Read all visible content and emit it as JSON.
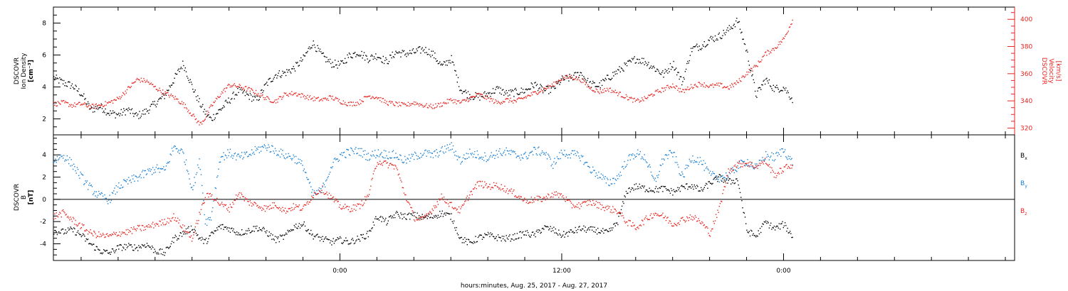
{
  "chart_data": {
    "type": "scatter",
    "x_axis": {
      "label": "hours:minutes, Aug. 25, 2017 - Aug. 27, 2017",
      "range_hours": [
        -15.5,
        36.5
      ],
      "ticks": [
        {
          "h": 0,
          "label": "0:00"
        },
        {
          "h": 12,
          "label": "12:00"
        },
        {
          "h": 24,
          "label": "0:00"
        }
      ],
      "minor_tick_step_hours": 2
    },
    "panels": [
      {
        "id": "density-velocity",
        "left_axis": {
          "label_lines": [
            "DSCOVR",
            "Ion Density",
            "[cm⁻³]"
          ],
          "range": [
            1,
            9
          ],
          "ticks": [
            2,
            4,
            6,
            8
          ],
          "color": "#000000"
        },
        "right_axis": {
          "label_lines": [
            "DSCOVR",
            "Velocity",
            "[km/s]"
          ],
          "range": [
            315,
            409
          ],
          "ticks": [
            320,
            340,
            360,
            380,
            400
          ],
          "color": "#e8231e"
        },
        "series": [
          {
            "name": "Ion Density",
            "axis": "left",
            "color": "#000000",
            "x": [
              -15.5,
              -15,
              -14.5,
              -14,
              -13.5,
              -13,
              -12.5,
              -12,
              -11.5,
              -11,
              -10.5,
              -10,
              -9.5,
              -9,
              -8.5,
              -8,
              -7.6,
              -7.3,
              -7,
              -6.5,
              -6,
              -5.5,
              -5,
              -4.5,
              -4,
              -3.5,
              -3,
              -2.5,
              -2,
              -1.5,
              -1,
              -0.5,
              0,
              0.5,
              1,
              1.5,
              2,
              2.5,
              3,
              3.5,
              4,
              4.5,
              5,
              5.5,
              6,
              6.5,
              7,
              7.5,
              8,
              8.5,
              9,
              9.5,
              10,
              10.5,
              11,
              11.5,
              12,
              12.5,
              13,
              13.5,
              14,
              14.5,
              15,
              15.5,
              16,
              16.5,
              17,
              17.5,
              18,
              18.5,
              19,
              19.5,
              20,
              20.5,
              21,
              21.5,
              22,
              22.5,
              23,
              23.5,
              24,
              24.5
            ],
            "y": [
              4.6,
              4.3,
              4.1,
              3.6,
              2.6,
              2.8,
              2.4,
              2.3,
              2.6,
              2.2,
              2.5,
              3.0,
              3.5,
              4.5,
              5.5,
              4.0,
              3.0,
              2.4,
              2.0,
              2.6,
              3.2,
              3.8,
              3.5,
              3.2,
              4.2,
              4.8,
              4.9,
              5.2,
              5.8,
              6.8,
              6.0,
              5.5,
              5.4,
              6.0,
              6.2,
              5.8,
              6.0,
              5.6,
              6.2,
              6.1,
              6.2,
              6.4,
              6.1,
              5.3,
              5.8,
              3.9,
              3.5,
              3.4,
              3.6,
              3.9,
              3.6,
              3.7,
              3.8,
              4.2,
              3.8,
              3.9,
              4.5,
              4.6,
              4.9,
              4.2,
              4.1,
              4.6,
              5.0,
              5.4,
              5.8,
              5.6,
              5.2,
              4.8,
              5.5,
              4.3,
              6.4,
              6.6,
              7.0,
              7.2,
              7.6,
              8.2,
              6.2,
              3.5,
              4.5,
              3.9,
              4.0,
              3.2
            ]
          },
          {
            "name": "Velocity",
            "axis": "right",
            "color": "#e8231e",
            "x": [
              -15.5,
              -15,
              -14.5,
              -14,
              -13.5,
              -13,
              -12.5,
              -12,
              -11.5,
              -11,
              -10.5,
              -10,
              -9.5,
              -9,
              -8.5,
              -8,
              -7.6,
              -7.3,
              -7,
              -6.5,
              -6,
              -5.5,
              -5,
              -4.5,
              -4,
              -3.5,
              -3,
              -2.5,
              -2,
              -1.5,
              -1,
              -0.5,
              0,
              0.5,
              1,
              1.5,
              2,
              2.5,
              3,
              3.5,
              4,
              4.5,
              5,
              5.5,
              6,
              6.5,
              7,
              7.5,
              8,
              8.5,
              9,
              9.5,
              10,
              10.5,
              11,
              11.5,
              12,
              12.5,
              13,
              13.5,
              14,
              14.5,
              15,
              15.5,
              16,
              16.5,
              17,
              17.5,
              18,
              18.5,
              19,
              19.5,
              20,
              20.5,
              21,
              21.5,
              22,
              22.5,
              23,
              23.5,
              24,
              24.5
            ],
            "y": [
              338,
              339,
              337,
              338,
              336,
              337,
              339,
              342,
              349,
              356,
              355,
              350,
              346,
              343,
              338,
              330,
              323,
              328,
              336,
              345,
              352,
              351,
              349,
              346,
              342,
              340,
              345,
              346,
              344,
              342,
              341,
              343,
              340,
              338,
              339,
              344,
              343,
              339,
              338,
              337,
              339,
              337,
              336,
              338,
              341,
              339,
              342,
              345,
              342,
              339,
              341,
              340,
              343,
              346,
              349,
              352,
              357,
              358,
              356,
              350,
              347,
              349,
              346,
              343,
              340,
              342,
              346,
              349,
              352,
              347,
              351,
              353,
              351,
              352,
              350,
              354,
              361,
              366,
              375,
              379,
              386,
              401
            ]
          }
        ]
      },
      {
        "id": "magnetic-field",
        "left_axis": {
          "label_lines": [
            "DSCOVR",
            "B",
            "[nT]"
          ],
          "range": [
            -5.5,
            5.8
          ],
          "ticks": [
            -4,
            -2,
            0,
            2,
            4
          ],
          "color": "#000000"
        },
        "zero_line": true,
        "series": [
          {
            "name": "Bx",
            "legend_main": "B",
            "legend_sub": "x",
            "color": "#000000",
            "x": [
              -15.5,
              -15,
              -14.5,
              -14,
              -13.5,
              -13,
              -12.5,
              -12,
              -11.5,
              -11,
              -10.5,
              -10,
              -9.5,
              -9,
              -8.5,
              -8,
              -7.6,
              -7.3,
              -7,
              -6.5,
              -6,
              -5.5,
              -5,
              -4.5,
              -4,
              -3.5,
              -3,
              -2.5,
              -2,
              -1.5,
              -1,
              -0.5,
              0,
              0.5,
              1,
              1.5,
              2,
              2.5,
              3,
              3.5,
              4,
              4.5,
              5,
              5.5,
              6,
              6.5,
              7,
              7.5,
              8,
              8.5,
              9,
              9.5,
              10,
              10.5,
              11,
              11.5,
              12,
              12.5,
              13,
              13.5,
              14,
              14.5,
              15,
              15.5,
              16,
              16.5,
              17,
              17.5,
              18,
              18.5,
              19,
              19.5,
              20,
              20.5,
              21,
              21.5,
              22,
              22.5,
              23,
              23.5,
              24,
              24.5
            ],
            "y": [
              -2.8,
              -2.9,
              -2.7,
              -3.2,
              -4.0,
              -4.6,
              -4.8,
              -4.3,
              -4.2,
              -4.3,
              -4.0,
              -4.6,
              -4.8,
              -3.5,
              -3.0,
              -2.5,
              -3.5,
              -3.8,
              -3.2,
              -2.4,
              -2.6,
              -3.0,
              -2.8,
              -2.5,
              -2.9,
              -3.6,
              -3.3,
              -2.4,
              -2.2,
              -3.2,
              -3.5,
              -3.8,
              -3.6,
              -3.8,
              -3.5,
              -3.1,
              -1.5,
              -2.0,
              -1.3,
              -1.5,
              -1.4,
              -1.6,
              -1.5,
              -1.2,
              -1.5,
              -3.5,
              -3.9,
              -3.4,
              -3.2,
              -3.4,
              -3.5,
              -3.3,
              -3.0,
              -3.2,
              -2.5,
              -2.7,
              -3.2,
              -2.9,
              -2.6,
              -2.7,
              -2.8,
              -3.0,
              -2.0,
              0.8,
              1.2,
              1.0,
              0.9,
              1.0,
              0.7,
              1.1,
              1.3,
              0.8,
              1.5,
              2.0,
              1.6,
              1.8,
              -2.8,
              -3.3,
              -2.0,
              -2.6,
              -2.2,
              -3.4
            ]
          },
          {
            "name": "By",
            "legend_main": "B",
            "legend_sub": "y",
            "color": "#1a7fd1",
            "x": [
              -15.5,
              -15,
              -14.5,
              -14,
              -13.5,
              -13,
              -12.5,
              -12,
              -11.5,
              -11,
              -10.5,
              -10,
              -9.5,
              -9,
              -8.5,
              -8,
              -7.6,
              -7.3,
              -7,
              -6.5,
              -6,
              -5.5,
              -5,
              -4.5,
              -4,
              -3.5,
              -3,
              -2.5,
              -2,
              -1.5,
              -1,
              -0.5,
              0,
              0.5,
              1,
              1.5,
              2,
              2.5,
              3,
              3.5,
              4,
              4.5,
              5,
              5.5,
              6,
              6.5,
              7,
              7.5,
              8,
              8.5,
              9,
              9.5,
              10,
              10.5,
              11,
              11.5,
              12,
              12.5,
              13,
              13.5,
              14,
              14.5,
              15,
              15.5,
              16,
              16.5,
              17,
              17.5,
              18,
              18.5,
              19,
              19.5,
              20,
              20.5,
              21,
              21.5,
              22,
              22.5,
              23,
              23.5,
              24,
              24.5
            ],
            "y": [
              3.5,
              4.0,
              3.2,
              2.0,
              1.0,
              0.3,
              0.0,
              1.2,
              1.6,
              2.0,
              2.4,
              2.8,
              2.6,
              4.8,
              4.2,
              1.0,
              3.5,
              -2.0,
              -1.6,
              3.8,
              4.2,
              3.8,
              4.0,
              4.5,
              4.8,
              4.4,
              4.0,
              3.8,
              3.0,
              0.5,
              0.8,
              3.0,
              4.0,
              4.3,
              4.4,
              3.9,
              4.2,
              4.1,
              4.0,
              3.5,
              3.9,
              4.2,
              4.0,
              4.4,
              4.8,
              3.5,
              4.2,
              4.0,
              3.8,
              4.2,
              4.3,
              4.0,
              3.9,
              4.4,
              4.3,
              3.2,
              4.2,
              4.1,
              3.9,
              2.8,
              2.2,
              1.5,
              2.0,
              3.5,
              4.2,
              3.8,
              1.5,
              3.8,
              4.2,
              2.0,
              3.8,
              3.5,
              2.2,
              2.0,
              2.2,
              3.0,
              3.5,
              2.8,
              4.0,
              3.8,
              4.5,
              3.2
            ]
          },
          {
            "name": "Bz",
            "legend_main": "B",
            "legend_sub": "z",
            "color": "#e8231e",
            "x": [
              -15.5,
              -15,
              -14.5,
              -14,
              -13.5,
              -13,
              -12.5,
              -12,
              -11.5,
              -11,
              -10.5,
              -10,
              -9.5,
              -9,
              -8.5,
              -8,
              -7.6,
              -7.3,
              -7,
              -6.5,
              -6,
              -5.5,
              -5,
              -4.5,
              -4,
              -3.5,
              -3,
              -2.5,
              -2,
              -1.5,
              -1,
              -0.5,
              0,
              0.5,
              1,
              1.5,
              2,
              2.5,
              3,
              3.5,
              4,
              4.5,
              5,
              5.5,
              6,
              6.5,
              7,
              7.5,
              8,
              8.5,
              9,
              9.5,
              10,
              10.5,
              11,
              11.5,
              12,
              12.5,
              13,
              13.5,
              14,
              14.5,
              15,
              15.5,
              16,
              16.5,
              17,
              17.5,
              18,
              18.5,
              19,
              19.5,
              20,
              20.5,
              21,
              21.5,
              22,
              22.5,
              23,
              23.5,
              24,
              24.5
            ],
            "y": [
              -1.5,
              -1.2,
              -1.8,
              -2.4,
              -3.0,
              -3.2,
              -3.3,
              -3.0,
              -2.9,
              -2.6,
              -2.5,
              -2.2,
              -2.0,
              -1.5,
              -2.5,
              -3.5,
              -1.2,
              0.2,
              0.5,
              -0.4,
              -0.8,
              0.6,
              -0.2,
              -0.5,
              -0.8,
              -0.4,
              -1.0,
              -0.6,
              -0.8,
              0.4,
              1.0,
              0.2,
              -0.6,
              -0.8,
              -0.6,
              0.3,
              3.5,
              3.2,
              3.0,
              0.5,
              -1.6,
              -1.8,
              -0.8,
              0.3,
              -0.5,
              -1.0,
              0.5,
              1.5,
              1.2,
              1.3,
              0.9,
              0.5,
              -0.1,
              0.0,
              0.1,
              0.5,
              0.4,
              -0.5,
              -0.5,
              -0.2,
              -0.5,
              -0.8,
              -1.0,
              -2.0,
              -2.5,
              -1.8,
              -1.2,
              -1.5,
              -2.2,
              -1.8,
              -1.5,
              -2.0,
              -3.0,
              -0.8,
              2.6,
              3.2,
              3.3,
              3.0,
              3.5,
              2.2,
              2.8,
              3.2
            ]
          }
        ]
      }
    ]
  }
}
